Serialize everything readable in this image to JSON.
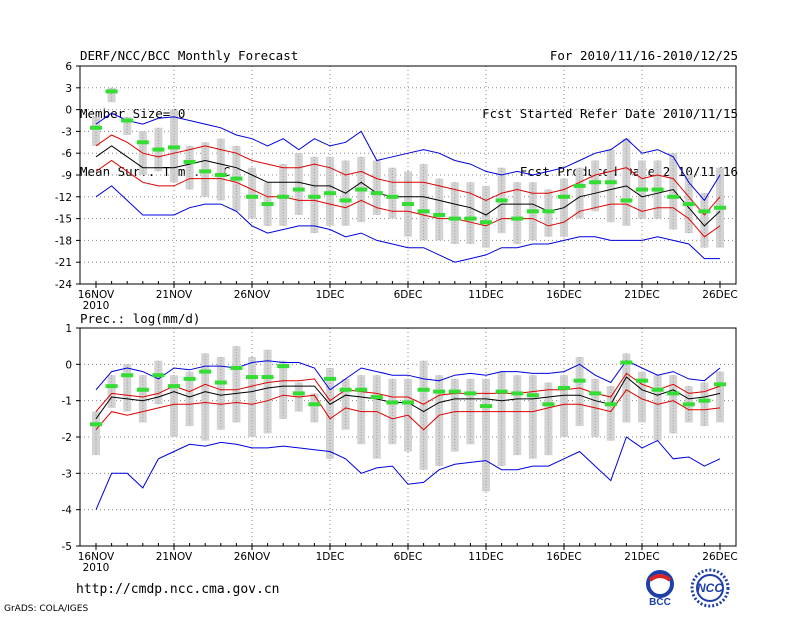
{
  "header": {
    "title": "DERF/NCC/BCC Monthly Forecast",
    "member_size": "Member Size=40",
    "period": "For 2010/11/16-2010/12/25",
    "started": "Fcst Started Refer Date 2010/11/15",
    "produced": "Fcst Produced Date 2010/11/16"
  },
  "footer": {
    "url": "http://cmdp.ncc.cma.gov.cn",
    "credit": "GrADS: COLA/IGES",
    "logo1_text": "BCC",
    "logo2_text": "NCC"
  },
  "colors": {
    "max_min": "#0000dd",
    "std": "#dd0000",
    "mean": "#000000",
    "median": "#33dd33",
    "box": "#d3d3d3",
    "grid": "#888888"
  },
  "chart_data": [
    {
      "type": "line",
      "title": "Mean Surf. Temp.: °C",
      "ylim": [
        -24,
        6
      ],
      "yticks": [
        "6",
        "3",
        "0",
        "-3",
        "-6",
        "-9",
        "-12",
        "-15",
        "-18",
        "-21",
        "-24"
      ],
      "xticks": [
        {
          "label": "16NOV",
          "sub": "2010",
          "day": 0
        },
        {
          "label": "21NOV",
          "day": 5
        },
        {
          "label": "26NOV",
          "day": 10
        },
        {
          "label": "1DEC",
          "day": 15
        },
        {
          "label": "6DEC",
          "day": 20
        },
        {
          "label": "11DEC",
          "day": 25
        },
        {
          "label": "16DEC",
          "day": 30
        },
        {
          "label": "21DEC",
          "day": 35
        },
        {
          "label": "26DEC",
          "day": 40
        }
      ],
      "series": [
        {
          "name": "max",
          "values": [
            -2,
            -0.5,
            -1.5,
            -2,
            -1.2,
            -1,
            -1.5,
            -2,
            -2.5,
            -3.5,
            -4,
            -5,
            -4,
            -5.5,
            -4,
            -5,
            -4.5,
            -3,
            -7,
            -6.5,
            -6,
            -5.5,
            -6,
            -7,
            -7.5,
            -8.5,
            -9,
            -8.5,
            -9,
            -8.5,
            -8,
            -7,
            -6,
            -5.5,
            -4,
            -6,
            -5.5,
            -6.5,
            -10,
            -12.5,
            -9
          ]
        },
        {
          "name": "std_high",
          "values": [
            -5,
            -3.5,
            -4.5,
            -6,
            -6.5,
            -6,
            -5.5,
            -5,
            -5.5,
            -6,
            -7,
            -7.5,
            -8,
            -8,
            -7.5,
            -8,
            -9,
            -8.5,
            -9.5,
            -10,
            -10,
            -10,
            -10.5,
            -11,
            -11.5,
            -12.5,
            -11.5,
            -11,
            -11.5,
            -11.5,
            -11,
            -10,
            -9,
            -8.5,
            -8,
            -9.5,
            -9,
            -9.5,
            -12,
            -14.5,
            -12
          ]
        },
        {
          "name": "mean",
          "values": [
            -6.5,
            -5,
            -6.5,
            -8,
            -8,
            -8,
            -7.5,
            -7,
            -7.5,
            -8,
            -9,
            -10,
            -10,
            -10,
            -10.5,
            -10.5,
            -11.5,
            -10,
            -11.5,
            -12,
            -12,
            -12,
            -12.5,
            -13,
            -13.5,
            -14.5,
            -13,
            -13,
            -13,
            -14,
            -13.5,
            -12,
            -11.5,
            -11,
            -10.5,
            -12,
            -11.5,
            -11,
            -13.5,
            -16,
            -14
          ]
        },
        {
          "name": "std_low",
          "values": [
            -8.5,
            -7,
            -8.5,
            -10,
            -10.5,
            -10.5,
            -9.5,
            -9.5,
            -9.5,
            -10,
            -11,
            -12,
            -12,
            -12.5,
            -12.5,
            -13,
            -13.5,
            -12.5,
            -13.5,
            -14,
            -14,
            -14.5,
            -15,
            -15,
            -15.5,
            -16,
            -15,
            -15,
            -15,
            -16,
            -15.5,
            -14,
            -13.5,
            -13,
            -13,
            -14,
            -13.5,
            -13.5,
            -15,
            -17.5,
            -16
          ]
        },
        {
          "name": "min",
          "values": [
            -12,
            -10.5,
            -12.5,
            -14.5,
            -14.5,
            -14.5,
            -13.5,
            -13,
            -13,
            -14,
            -16,
            -17,
            -16.5,
            -16,
            -16,
            -16.5,
            -17.5,
            -17,
            -18,
            -18.5,
            -19,
            -19,
            -20,
            -21,
            -20.5,
            -20,
            -19,
            -19,
            -18.5,
            -18.5,
            -18,
            -17.5,
            -17.5,
            -18,
            -18,
            -18,
            -17.5,
            -18,
            -18.5,
            -20.5,
            -20.5
          ]
        },
        {
          "name": "median",
          "values": [
            -2.5,
            2.5,
            -1.5,
            -4.5,
            -5.5,
            -5.2,
            -7.2,
            -8.5,
            -9,
            -9.5,
            -12,
            -13,
            -12,
            -11,
            -12,
            -11.5,
            -12.5,
            -11,
            -11.5,
            -12,
            -13,
            -14,
            -14.5,
            -15,
            -15,
            -15.5,
            -12.5,
            -15,
            -14,
            -14,
            -12,
            -10.5,
            -10,
            -10,
            -12.5,
            -11,
            -11,
            -12,
            -13,
            -14,
            -13.5
          ]
        },
        {
          "name": "box_high",
          "values": [
            -1,
            3,
            -1,
            -3,
            -2.5,
            0,
            -5,
            -4.5,
            -4,
            -5,
            -8,
            -10,
            -7.5,
            -6,
            -6.5,
            -6.5,
            -7,
            -6.5,
            -7,
            -8,
            -8.5,
            -7.5,
            -9.5,
            -10,
            -10,
            -10.5,
            -8,
            -10,
            -10,
            -11,
            -9.5,
            -8,
            -7,
            -5.5,
            -4,
            -7,
            -7,
            -6,
            -9,
            -11.5,
            -8
          ]
        },
        {
          "name": "box_low",
          "values": [
            -5,
            1,
            -3.5,
            -9,
            -8.5,
            -10,
            -11,
            -12,
            -12.5,
            -14,
            -15,
            -16,
            -16,
            -14.5,
            -17,
            -16,
            -16,
            -15.5,
            -14.5,
            -15,
            -17.5,
            -18,
            -18,
            -18.5,
            -18.5,
            -19,
            -17,
            -18.5,
            -18,
            -17.5,
            -17.5,
            -15,
            -14,
            -15.5,
            -16,
            -15,
            -15,
            -16.5,
            -17,
            -19,
            -19
          ]
        }
      ]
    },
    {
      "type": "line",
      "title": "Prec.: log(mm/d)",
      "ylim": [
        -5,
        1
      ],
      "yticks": [
        "1",
        "0",
        "-1",
        "-2",
        "-3",
        "-4",
        "-5"
      ],
      "xticks": [
        {
          "label": "16NOV",
          "sub": "2010",
          "day": 0
        },
        {
          "label": "21NOV",
          "day": 5
        },
        {
          "label": "26NOV",
          "day": 10
        },
        {
          "label": "1DEC",
          "day": 15
        },
        {
          "label": "6DEC",
          "day": 20
        },
        {
          "label": "11DEC",
          "day": 25
        },
        {
          "label": "16DEC",
          "day": 30
        },
        {
          "label": "21DEC",
          "day": 35
        },
        {
          "label": "26DEC",
          "day": 40
        }
      ],
      "series": [
        {
          "name": "max",
          "values": [
            -0.7,
            -0.2,
            -0.1,
            -0.2,
            -0.4,
            -0.1,
            -0.15,
            -0.05,
            -0.05,
            -0.1,
            0.05,
            0.1,
            0.05,
            0.05,
            -0.1,
            -0.7,
            -0.4,
            -0.1,
            -0.2,
            -0.3,
            -0.3,
            -0.4,
            -0.45,
            -0.3,
            -0.25,
            -0.3,
            -0.2,
            -0.2,
            -0.25,
            -0.25,
            -0.2,
            0,
            -0.3,
            -0.5,
            0.1,
            -0.1,
            -0.3,
            -0.2,
            -0.4,
            -0.45,
            -0.1
          ]
        },
        {
          "name": "std_high",
          "values": [
            -1.3,
            -0.8,
            -0.85,
            -0.9,
            -0.8,
            -0.6,
            -0.75,
            -0.55,
            -0.7,
            -0.7,
            -0.6,
            -0.5,
            -0.45,
            -0.45,
            -0.4,
            -1.0,
            -0.7,
            -0.75,
            -0.8,
            -0.9,
            -0.9,
            -1.1,
            -0.85,
            -0.8,
            -0.8,
            -0.8,
            -0.8,
            -0.8,
            -0.75,
            -0.7,
            -0.7,
            -0.65,
            -0.8,
            -0.9,
            -0.25,
            -0.55,
            -0.7,
            -0.55,
            -0.8,
            -0.75,
            -0.6
          ]
        },
        {
          "name": "mean",
          "values": [
            -1.5,
            -0.9,
            -0.95,
            -1.0,
            -0.9,
            -0.75,
            -0.9,
            -0.75,
            -0.85,
            -0.8,
            -0.75,
            -0.65,
            -0.6,
            -0.6,
            -0.6,
            -1.1,
            -0.85,
            -0.9,
            -0.95,
            -1.05,
            -1.05,
            -1.3,
            -1.05,
            -0.95,
            -0.95,
            -0.95,
            -1.0,
            -0.95,
            -0.95,
            -0.9,
            -0.85,
            -0.85,
            -1.0,
            -1.1,
            -0.35,
            -0.7,
            -0.85,
            -0.7,
            -0.95,
            -0.9,
            -0.8
          ]
        },
        {
          "name": "std_low",
          "values": [
            -1.8,
            -1.3,
            -1.4,
            -1.3,
            -1.2,
            -1.1,
            -1.1,
            -1.05,
            -1.1,
            -1.05,
            -1.1,
            -1.0,
            -0.85,
            -0.9,
            -0.85,
            -1.5,
            -1.2,
            -1.3,
            -1.3,
            -1.5,
            -1.4,
            -1.8,
            -1.4,
            -1.3,
            -1.3,
            -1.3,
            -1.3,
            -1.3,
            -1.3,
            -1.2,
            -1.1,
            -1.1,
            -1.2,
            -1.3,
            -0.7,
            -0.95,
            -1.1,
            -1.0,
            -1.25,
            -1.25,
            -1.2
          ]
        },
        {
          "name": "min",
          "values": [
            -4.0,
            -3.0,
            -3.0,
            -3.4,
            -2.6,
            -2.4,
            -2.2,
            -2.25,
            -2.15,
            -2.2,
            -2.3,
            -2.3,
            -2.25,
            -2.3,
            -2.35,
            -2.4,
            -2.6,
            -3.0,
            -2.85,
            -2.8,
            -3.3,
            -3.25,
            -2.9,
            -2.75,
            -2.7,
            -2.65,
            -2.9,
            -2.9,
            -2.8,
            -2.8,
            -2.6,
            -2.4,
            -2.8,
            -3.2,
            -2.0,
            -2.3,
            -2.1,
            -2.6,
            -2.55,
            -2.8,
            -2.6
          ]
        },
        {
          "name": "median",
          "values": [
            -1.65,
            -0.6,
            -0.3,
            -0.7,
            -0.3,
            -0.6,
            -0.4,
            -0.2,
            -0.5,
            -0.1,
            -0.35,
            -0.35,
            -0.05,
            -0.8,
            -1.1,
            -0.4,
            -0.7,
            -0.7,
            -0.9,
            -1.05,
            -1.05,
            -0.7,
            -0.75,
            -0.75,
            -0.8,
            -1.15,
            -0.75,
            -0.8,
            -0.85,
            -1.1,
            -0.65,
            -0.45,
            -0.8,
            -1.1,
            0.05,
            -0.45,
            -0.7,
            -0.8,
            -1.1,
            -1.0,
            -0.55
          ]
        },
        {
          "name": "box_high",
          "values": [
            -1.3,
            -0.3,
            0,
            -0.3,
            0.1,
            -0.3,
            -0.2,
            0.3,
            0.2,
            0.5,
            0.2,
            0.4,
            0.1,
            -0.5,
            -0.8,
            -0.1,
            -0.4,
            -0.3,
            -0.3,
            -0.4,
            -0.4,
            0.1,
            -0.3,
            -0.4,
            -0.4,
            -0.4,
            -0.2,
            -0.3,
            -0.3,
            -0.5,
            -0.3,
            0.2,
            -0.4,
            -0.6,
            0.3,
            -0.2,
            -0.3,
            -0.3,
            -0.6,
            -0.5,
            -0.2
          ]
        },
        {
          "name": "box_low",
          "values": [
            -2.5,
            -1.2,
            -1.3,
            -1.6,
            -1.1,
            -2.0,
            -1.7,
            -2.1,
            -1.8,
            -1.6,
            -2.0,
            -1.9,
            -1.5,
            -1.3,
            -1.6,
            -2.6,
            -1.8,
            -2.2,
            -2.6,
            -2.2,
            -2.4,
            -2.9,
            -2.8,
            -2.4,
            -2.2,
            -3.5,
            -2.8,
            -2.5,
            -2.6,
            -2.5,
            -2.0,
            -1.7,
            -2.0,
            -2.1,
            -1.6,
            -1.6,
            -2.1,
            -1.9,
            -1.6,
            -1.7,
            -1.6
          ]
        }
      ]
    }
  ]
}
